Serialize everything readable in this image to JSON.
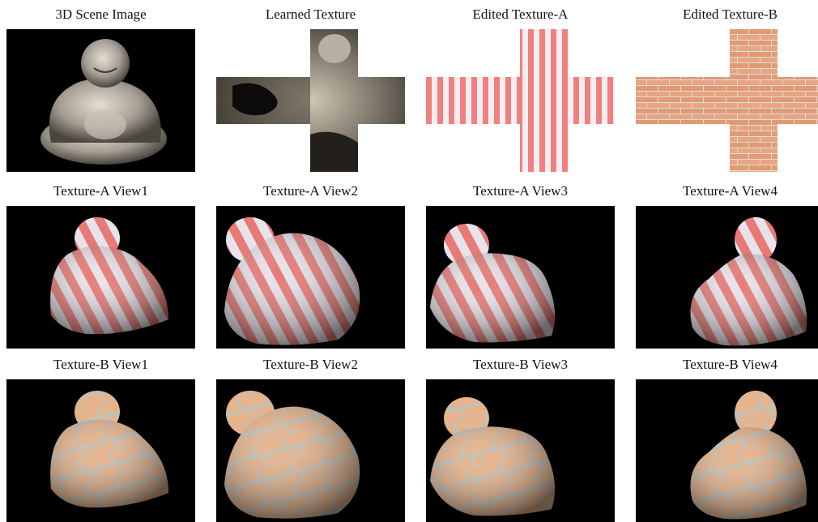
{
  "rows": [
    {
      "panels": [
        {
          "caption": "3D Scene Image",
          "kind": "photo"
        },
        {
          "caption": "Learned Texture",
          "kind": "learned-cross"
        },
        {
          "caption": "Edited Texture-A",
          "kind": "stripe-cross"
        },
        {
          "caption": "Edited Texture-B",
          "kind": "brick-cross"
        }
      ]
    },
    {
      "panels": [
        {
          "caption": "Texture-A View1",
          "kind": "render-stripes"
        },
        {
          "caption": "Texture-A View2",
          "kind": "render-stripes"
        },
        {
          "caption": "Texture-A View3",
          "kind": "render-stripes"
        },
        {
          "caption": "Texture-A View4",
          "kind": "render-stripes"
        }
      ]
    },
    {
      "panels": [
        {
          "caption": "Texture-B View1",
          "kind": "render-brick"
        },
        {
          "caption": "Texture-B View2",
          "kind": "render-brick"
        },
        {
          "caption": "Texture-B View3",
          "kind": "render-brick"
        },
        {
          "caption": "Texture-B View4",
          "kind": "render-brick"
        }
      ]
    }
  ],
  "colors": {
    "stripe_red": "#f08080",
    "stripe_white": "#f4eef0",
    "brick": "#e5a07a",
    "mortar": "#d8dfe6",
    "stone": "#b9b3a8",
    "background": "#000000"
  }
}
